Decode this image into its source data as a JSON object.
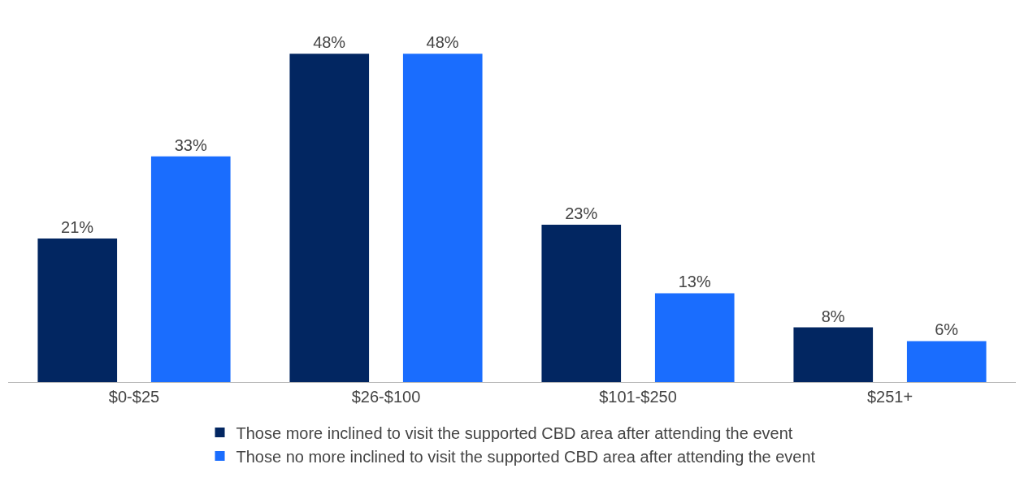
{
  "chart_data": {
    "type": "bar",
    "categories": [
      "$0-$25",
      "$26-$100",
      "$101-$250",
      "$251+"
    ],
    "series": [
      {
        "name": "Those more inclined to visit the supported CBD area after attending the event",
        "color": "#022661",
        "values": [
          21,
          48,
          23,
          8
        ],
        "value_labels": [
          "21%",
          "48%",
          "23%",
          "8%"
        ]
      },
      {
        "name": "Those no more inclined to visit the supported CBD area after attending the event",
        "color": "#1a6dfe",
        "values": [
          33,
          48,
          13,
          6
        ],
        "value_labels": [
          "33%",
          "48%",
          "13%",
          "6%"
        ]
      }
    ],
    "legend": "bottom",
    "grid": false
  }
}
